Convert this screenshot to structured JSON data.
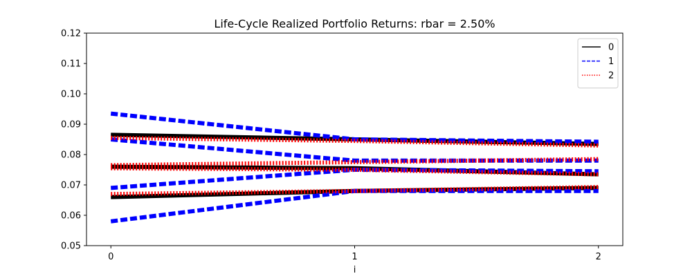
{
  "chart_data": {
    "type": "line",
    "title": "Life-Cycle Realized Portfolio Returns: rbar = 2.50%",
    "xlabel": "i",
    "ylabel": "",
    "xlim": [
      -0.1,
      2.1
    ],
    "ylim": [
      0.05,
      0.12
    ],
    "x_ticks": [
      "0",
      "1",
      "2"
    ],
    "y_ticks": [
      "0.05",
      "0.06",
      "0.07",
      "0.08",
      "0.09",
      "0.10",
      "0.11",
      "0.12"
    ],
    "grid": false,
    "legend_position": "top-right",
    "x": [
      0,
      1,
      2
    ],
    "series": [
      {
        "name": "0",
        "color": "#000000",
        "style": "solid",
        "lines": [
          [
            0.0865,
            0.085,
            0.0835
          ],
          [
            0.076,
            0.0755,
            0.0735
          ],
          [
            0.066,
            0.068,
            0.069
          ]
        ]
      },
      {
        "name": "1",
        "color": "#0000ff",
        "style": "dashed",
        "lines": [
          [
            0.0935,
            0.085,
            0.0842
          ],
          [
            0.085,
            0.078,
            0.078
          ],
          [
            0.069,
            0.075,
            0.0745
          ],
          [
            0.058,
            0.068,
            0.068
          ]
        ]
      },
      {
        "name": "2",
        "color": "#ff0000",
        "style": "dotted",
        "lines": [
          [
            0.0855,
            0.0845,
            0.083
          ],
          [
            0.0765,
            0.0775,
            0.0785
          ],
          [
            0.0755,
            0.075,
            0.0735
          ],
          [
            0.067,
            0.068,
            0.0693
          ]
        ]
      }
    ]
  }
}
